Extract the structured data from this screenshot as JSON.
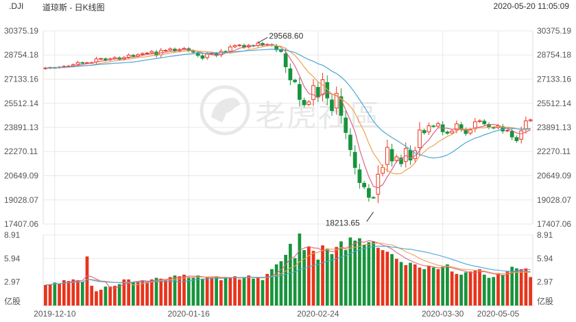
{
  "header": {
    "symbol": ".DJI",
    "title": "道琼斯 - 日K线图",
    "timestamp": "2020-05-20 11:05:09"
  },
  "watermark": "老虎社區",
  "colors": {
    "up": "#e8341c",
    "down": "#18943c",
    "ma5": "#e06080",
    "ma10": "#f0a050",
    "ma20": "#4aa6d8",
    "grid": "#e8e8e8",
    "axis_text": "#555555"
  },
  "chart_data": [
    {
      "type": "candlestick",
      "title": "道琼斯 - 日K线图",
      "y_tick_labels": [
        "30375.19",
        "28754.18",
        "27133.16",
        "25512.14",
        "23891.13",
        "22270.11",
        "20649.09",
        "19028.07",
        "17407.06"
      ],
      "ylim": [
        17407.06,
        30375.19
      ],
      "x_tick_labels": [
        "2019-12-10",
        "2020-01-16",
        "2020-02-24",
        "2020-03-30",
        "2020-05-05"
      ],
      "annotations": [
        {
          "text": "29568.60",
          "label": "high",
          "value": 29568.6
        },
        {
          "text": "18213.65",
          "label": "low",
          "value": 18213.65
        }
      ],
      "close_approx": [
        27881,
        27911,
        27910,
        27937,
        27991,
        28010,
        28101,
        28248,
        28227,
        28234,
        28243,
        28491,
        28512,
        28410,
        28495,
        28580,
        28462,
        28583,
        28745,
        28669,
        28778,
        28852,
        28882,
        28989,
        28719,
        29052,
        29069,
        29169,
        29020,
        29123,
        29201,
        29049,
        28940,
        28725,
        28535,
        28823,
        28867,
        28721,
        28999,
        28960,
        29290,
        29380,
        29420,
        29268,
        29398,
        29364,
        29551,
        29420,
        29465,
        29390,
        29100,
        28990,
        27960,
        27081,
        26957,
        25767,
        25410,
        25600,
        26700,
        25918,
        27090,
        25864,
        25018,
        26179,
        24700,
        23550,
        22400,
        21200,
        20188,
        19898,
        19200,
        19173,
        20750,
        21200,
        22552,
        21636,
        21917,
        21450,
        22480,
        21700,
        22325,
        23720,
        23530,
        24000,
        23950,
        24150,
        23600,
        23500,
        23650,
        24130,
        23775,
        23480,
        23720,
        24270,
        24345,
        24130,
        23900,
        23850,
        24000,
        23650,
        23700,
        23250,
        23000,
        23660,
        24331,
        24400
      ]
    },
    {
      "type": "bar",
      "title": "",
      "ylabel": "亿股",
      "y_tick_labels": [
        "8.91",
        "5.94",
        "2.97",
        "亿股"
      ],
      "ylim": [
        0,
        8.91
      ],
      "values_approx": [
        2.6,
        2.7,
        2.9,
        2.8,
        3.2,
        3.1,
        3.3,
        3.2,
        3.0,
        6.2,
        2.5,
        1.8,
        2.0,
        2.4,
        2.4,
        2.5,
        2.7,
        3.3,
        3.3,
        3.0,
        3.0,
        3.2,
        3.0,
        3.3,
        3.5,
        3.4,
        3.2,
        3.6,
        3.8,
        3.7,
        3.9,
        3.6,
        3.5,
        3.8,
        3.4,
        3.6,
        3.5,
        3.7,
        3.2,
        3.6,
        3.5,
        3.7,
        3.3,
        3.6,
        3.8,
        3.4,
        3.5,
        3.2,
        4.0,
        4.6,
        5.2,
        5.6,
        6.4,
        7.8,
        6.0,
        9.1,
        7.0,
        7.4,
        6.9,
        5.8,
        7.6,
        7.2,
        6.5,
        7.4,
        8.1,
        7.0,
        8.6,
        8.2,
        8.5,
        7.7,
        8.0,
        8.1,
        7.3,
        7.0,
        6.8,
        6.5,
        5.9,
        5.5,
        5.1,
        5.4,
        5.2,
        4.8,
        4.6,
        5.0,
        4.8,
        4.6,
        4.9,
        5.2,
        4.3,
        4.0,
        3.9,
        4.2,
        4.3,
        4.4,
        4.6,
        3.9,
        3.5,
        3.6,
        4.1,
        3.9,
        4.3,
        4.9,
        4.7,
        4.6,
        4.7,
        3.6
      ]
    }
  ]
}
